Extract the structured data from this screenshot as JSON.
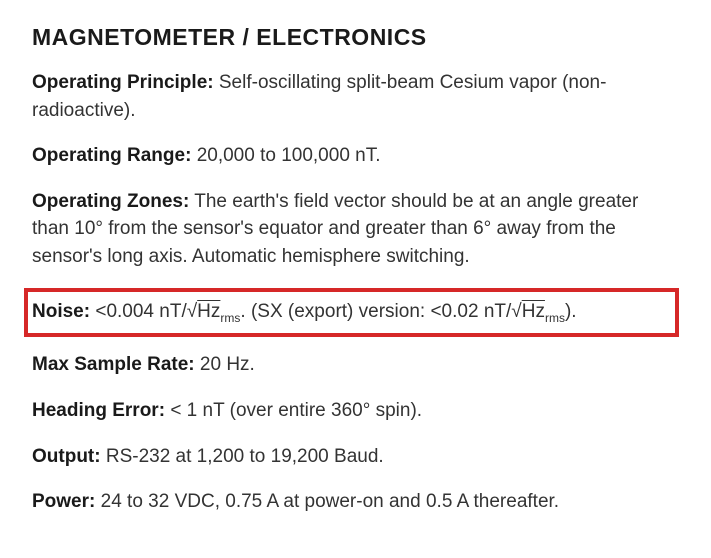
{
  "section_title": "MAGNETOMETER / ELECTRONICS",
  "specs": {
    "operating_principle": {
      "label": "Operating Principle:",
      "value": "Self-oscillating split-beam Cesium vapor (non-radioactive)."
    },
    "operating_range": {
      "label": "Operating Range:",
      "value": "20,000 to 100,000 nT."
    },
    "operating_zones": {
      "label": "Operating Zones:",
      "value": "The earth's field vector should be at an angle greater than 10° from the sensor's equator and greater than 6° away from the sensor's long axis. Automatic hemisphere switching."
    },
    "noise": {
      "label": "Noise:",
      "value_prefix": "<0.004 nT/",
      "sqrt_unit": "Hz",
      "sub": "rms",
      "middle": ".  (SX (export) version:  <0.02 nT/",
      "sqrt_unit2": "Hz",
      "sub2": "rms",
      "suffix": ")."
    },
    "max_sample_rate": {
      "label": "Max Sample Rate:",
      "value": "20 Hz."
    },
    "heading_error": {
      "label": "Heading Error:",
      "value": "< 1 nT (over entire 360° spin)."
    },
    "output": {
      "label": "Output:",
      "value": "RS-232 at 1,200 to 19,200 Baud."
    },
    "power": {
      "label": "Power:",
      "value": "24 to 32 VDC, 0.75 A at power-on and 0.5 A thereafter."
    }
  },
  "highlight_color": "#d62828"
}
